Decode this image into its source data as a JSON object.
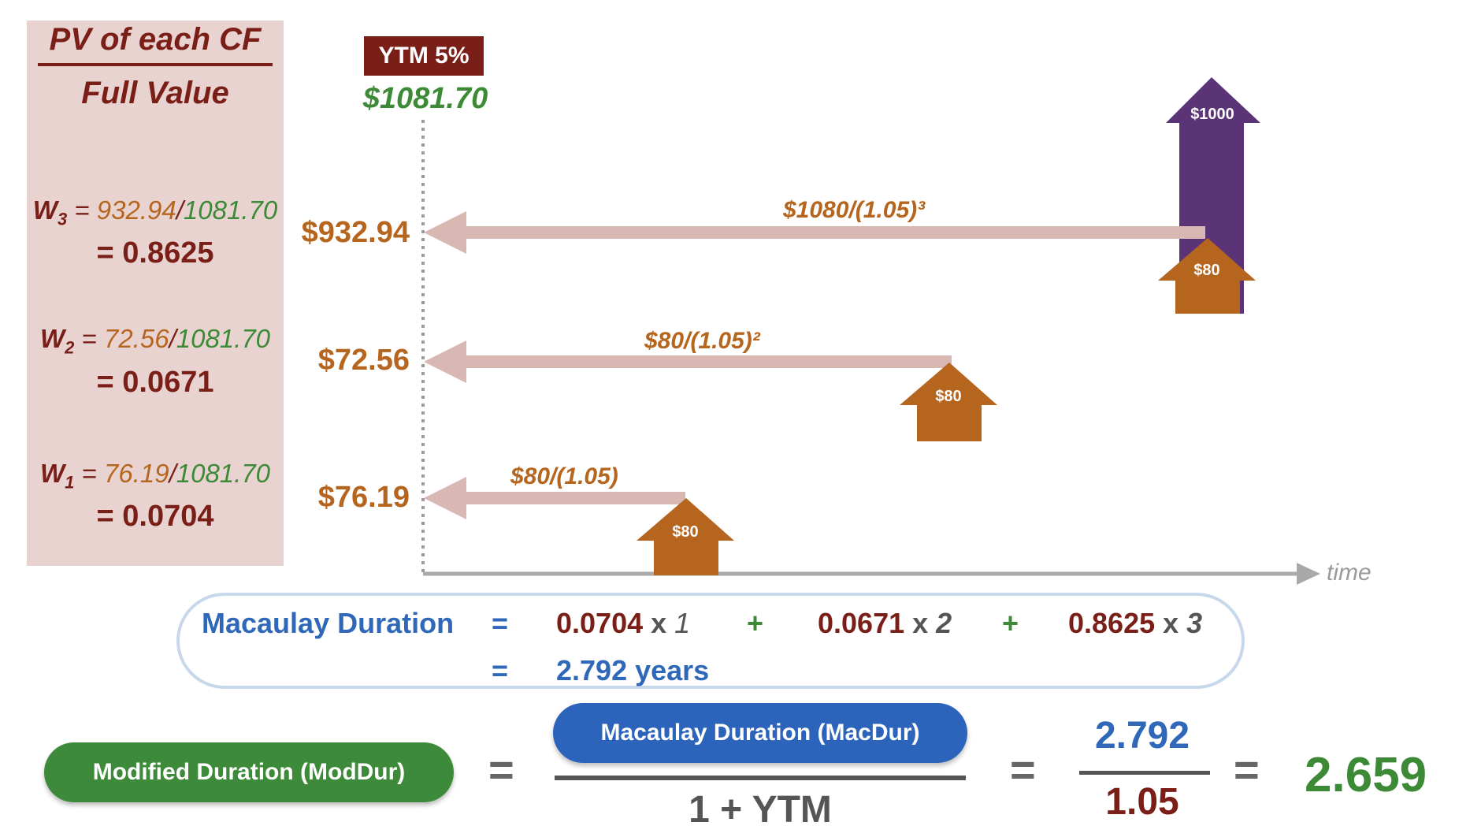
{
  "panel": {
    "title_top": "PV of each CF",
    "title_bottom": "Full Value",
    "weights": [
      {
        "label": "W3",
        "numerator": "932.94",
        "denominator": "1081.70",
        "value": "= 0.8625"
      },
      {
        "label": "W2",
        "numerator": "72.56",
        "denominator": "1081.70",
        "value": "= 0.0671"
      },
      {
        "label": "W1",
        "numerator": "76.19",
        "denominator": "1081.70",
        "value": "= 0.0704"
      }
    ]
  },
  "timeline": {
    "ytm_badge": "YTM 5%",
    "full_value": "$1081.70",
    "time_label": "time",
    "rows": [
      {
        "pv": "$932.94",
        "discount": "$1080/(1.05)³",
        "cashflow": "$80",
        "principal": "$1000"
      },
      {
        "pv": "$72.56",
        "discount": "$80/(1.05)²",
        "cashflow": "$80"
      },
      {
        "pv": "$76.19",
        "discount": "$80/(1.05)",
        "cashflow": "$80"
      }
    ]
  },
  "macaulay": {
    "label": "Macaulay Duration",
    "eq": "=",
    "terms": [
      {
        "weight": "0.0704",
        "times": "x",
        "t": "1"
      },
      {
        "weight": "0.0671",
        "times": "x",
        "t": "2"
      },
      {
        "weight": "0.8625",
        "times": "x",
        "t": "3"
      }
    ],
    "plus": "+",
    "result": "2.792 years"
  },
  "modified": {
    "label": "Modified Duration (ModDur)",
    "eq": "=",
    "numerator_label": "Macaulay Duration (MacDur)",
    "denominator_label": "1 + YTM",
    "numerator_value": "2.792",
    "denominator_value": "1.05",
    "result": "2.659"
  },
  "colors": {
    "maroon": "#7a1f18",
    "orange": "#b5651d",
    "green": "#3c8a36",
    "blue": "#2f68b8",
    "purple": "#5b3478",
    "pink_arrow": "#d9b8b4"
  }
}
